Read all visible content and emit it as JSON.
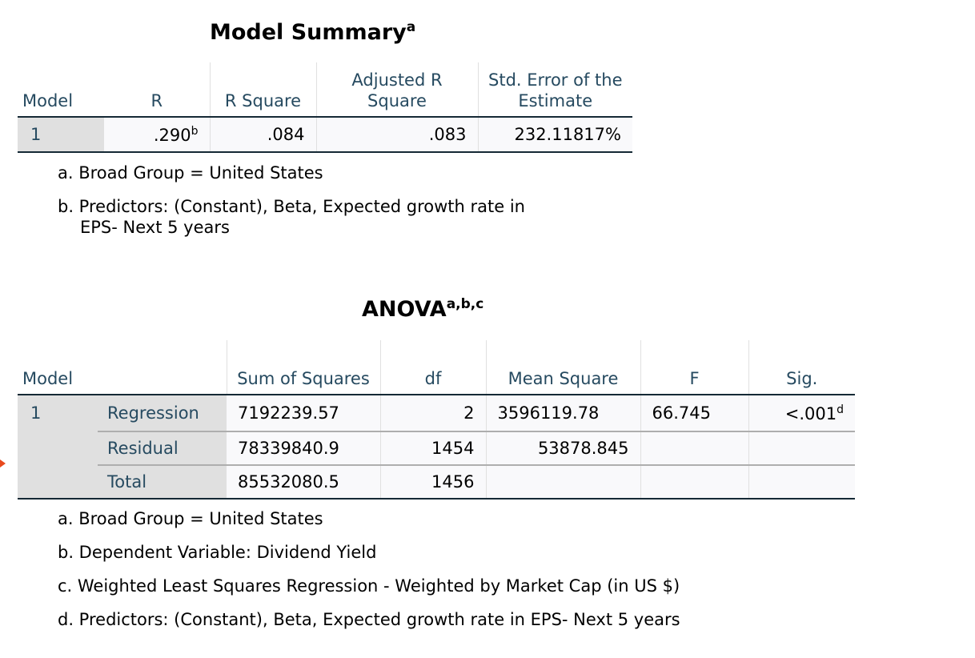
{
  "model_summary": {
    "title": "Model Summary",
    "title_sup": "a",
    "headers": [
      "Model",
      "R",
      "R Square",
      "Adjusted R Square",
      "Std. Error of the Estimate"
    ],
    "rows": [
      {
        "model": "1",
        "r": ".290",
        "r_sup": "b",
        "r_square": ".084",
        "adj_r_square": ".083",
        "std_error": "232.11817%"
      }
    ],
    "footnotes": [
      "a. Broad Group = United States",
      "b. Predictors: (Constant), Beta, Expected growth rate in",
      "EPS- Next 5 years"
    ]
  },
  "anova": {
    "title": "ANOVA",
    "title_sup": "a,b,c",
    "headers": [
      "Model",
      "Sum of Squares",
      "df",
      "Mean Square",
      "F",
      "Sig."
    ],
    "model": "1",
    "rows": [
      {
        "label": "Regression",
        "ss": "7192239.57",
        "df": "2",
        "ms": "3596119.78",
        "f": "66.745",
        "sig": "<.001",
        "sig_sup": "d"
      },
      {
        "label": "Residual",
        "ss": "78339840.9",
        "df": "1454",
        "ms": "53878.845",
        "f": "",
        "sig": ""
      },
      {
        "label": "Total",
        "ss": "85532080.5",
        "df": "1456",
        "ms": "",
        "f": "",
        "sig": ""
      }
    ],
    "footnotes": [
      "a. Broad Group = United States",
      "b. Dependent Variable: Dividend Yield",
      "c. Weighted Least Squares Regression - Weighted by Market Cap (in US $)",
      "d. Predictors: (Constant), Beta, Expected growth rate in EPS- Next 5 years"
    ]
  }
}
